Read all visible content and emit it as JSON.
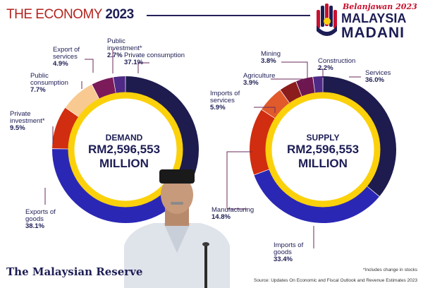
{
  "header": {
    "title_main": "THE ECONOMY",
    "title_year": "2023"
  },
  "logo": {
    "tagline": "Belanjawan 2023",
    "line1": "MALAYSIA",
    "line2": "MADANI"
  },
  "colors": {
    "navy": "#1d1d55",
    "gold": "#fbd10b",
    "red": "#c8102e"
  },
  "chart_data": [
    {
      "type": "pie",
      "title": "DEMAND",
      "total": "RM2,596,553",
      "unit": "MILLION",
      "labels": [
        "Private consumption",
        "Exports of goods",
        "Private investment*",
        "Public consumption",
        "Export of services",
        "Public investment*"
      ],
      "values": [
        37.1,
        38.1,
        9.5,
        7.7,
        4.9,
        2.7
      ],
      "display": [
        "37.1%",
        "38.1%",
        "9.5%",
        "7.7%",
        "4.9%",
        "2.7%"
      ],
      "colors": [
        "#1e1b4e",
        "#2b27b5",
        "#d12d10",
        "#f8c990",
        "#7b1b5a",
        "#4e2a86"
      ]
    },
    {
      "type": "pie",
      "title": "SUPPLY",
      "total": "RM2,596,553",
      "unit": "MILLION",
      "labels": [
        "Services",
        "Imports of goods",
        "Manufacturing",
        "Imports of services",
        "Agriculture",
        "Mining",
        "Construction"
      ],
      "values": [
        36.0,
        33.4,
        14.8,
        5.9,
        3.9,
        3.8,
        2.2
      ],
      "display": [
        "36.0%",
        "33.4%",
        "14.8%",
        "5.9%",
        "3.9%",
        "3.8%",
        "2.2%"
      ],
      "colors": [
        "#1e1b4e",
        "#2b27b5",
        "#d12d10",
        "#e15a2c",
        "#8c1d1d",
        "#6d1650",
        "#4e2a86"
      ]
    }
  ],
  "footer": {
    "brand": "The Malaysian Reserve",
    "note": "*Includes change in stocks",
    "source": "Source: Updates On Economic and Fiscal Outlook and Revenue Estimates 2023"
  }
}
